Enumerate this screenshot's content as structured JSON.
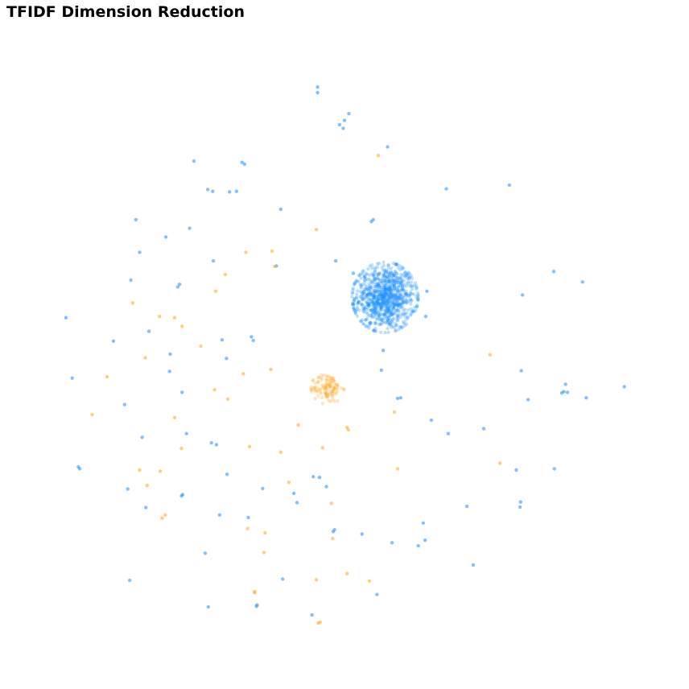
{
  "chart_data": {
    "type": "scatter",
    "title": "TFIDF Dimension Reduction",
    "xlabel": "",
    "ylabel": "",
    "xlim": [
      0,
      100
    ],
    "ylim": [
      0,
      100
    ],
    "grid": false,
    "axes_visible": false,
    "legend": "none",
    "colors": [
      "#1e90ff",
      "#ffa51e"
    ],
    "series": [
      {
        "color": "#1e90ff",
        "points": [
          [
            45.7,
            92.4
          ],
          [
            45.7,
            91.5
          ],
          [
            50.7,
            88.1
          ],
          [
            50.0,
            87.0
          ],
          [
            49.2,
            86.3
          ],
          [
            49.8,
            85.7
          ],
          [
            56.9,
            82.7
          ],
          [
            25.9,
            80.4
          ],
          [
            33.6,
            80.2
          ],
          [
            34.0,
            79.9
          ],
          [
            28.1,
            75.8
          ],
          [
            28.9,
            75.5
          ],
          [
            31.6,
            75.4
          ],
          [
            32.7,
            75.5
          ],
          [
            66.3,
            75.9
          ],
          [
            76.4,
            76.5
          ],
          [
            39.8,
            72.6
          ],
          [
            54.3,
            70.6
          ],
          [
            54.6,
            70.9
          ],
          [
            16.6,
            70.9
          ],
          [
            25.2,
            69.5
          ],
          [
            21.4,
            68.1
          ],
          [
            17.2,
            65.6
          ],
          [
            29.0,
            64.2
          ],
          [
            39.1,
            63.4
          ],
          [
            48.6,
            64.2
          ],
          [
            51.4,
            62.2
          ],
          [
            53.2,
            61.6
          ],
          [
            83.5,
            62.5
          ],
          [
            15.8,
            61.1
          ],
          [
            23.6,
            60.4
          ],
          [
            23.3,
            60.0
          ],
          [
            63.2,
            59.3
          ],
          [
            78.5,
            58.7
          ],
          [
            88.1,
            60.8
          ],
          [
            5.4,
            55.0
          ],
          [
            18.7,
            52.8
          ],
          [
            13.0,
            51.2
          ],
          [
            30.4,
            51.4
          ],
          [
            35.4,
            51.3
          ],
          [
            35.1,
            51.9
          ],
          [
            63.0,
            55.2
          ],
          [
            56.2,
            49.7
          ],
          [
            22.1,
            49.1
          ],
          [
            31.1,
            48.4
          ],
          [
            22.0,
            46.3
          ],
          [
            55.9,
            46.5
          ],
          [
            78.3,
            46.4
          ],
          [
            6.4,
            45.2
          ],
          [
            14.8,
            40.9
          ],
          [
            24.0,
            42.9
          ],
          [
            58.5,
            41.9
          ],
          [
            59.0,
            42.0
          ],
          [
            79.4,
            41.7
          ],
          [
            85.4,
            44.2
          ],
          [
            85.1,
            43.0
          ],
          [
            84.8,
            42.8
          ],
          [
            85.7,
            42.9
          ],
          [
            88.7,
            42.0
          ],
          [
            94.8,
            43.8
          ],
          [
            63.9,
            38.4
          ],
          [
            66.6,
            36.2
          ],
          [
            72.3,
            37.0
          ],
          [
            17.6,
            35.6
          ],
          [
            24.7,
            36.2
          ],
          [
            28.7,
            34.7
          ],
          [
            29.5,
            34.4
          ],
          [
            7.6,
            30.5
          ],
          [
            7.4,
            30.8
          ],
          [
            15.3,
            27.2
          ],
          [
            23.9,
            26.1
          ],
          [
            24.1,
            26.3
          ],
          [
            31.2,
            29.6
          ],
          [
            45.0,
            29.2
          ],
          [
            46.0,
            29.1
          ],
          [
            47.1,
            27.6
          ],
          [
            36.9,
            27.3
          ],
          [
            41.9,
            26.5
          ],
          [
            42.4,
            25.0
          ],
          [
            30.0,
            23.0
          ],
          [
            34.6,
            22.6
          ],
          [
            18.2,
            24.2
          ],
          [
            48.2,
            20.3
          ],
          [
            48.4,
            20.6
          ],
          [
            62.6,
            21.7
          ],
          [
            69.6,
            24.4
          ],
          [
            77.5,
            30.3
          ],
          [
            78.2,
            25.1
          ],
          [
            78.1,
            24.3
          ],
          [
            83.6,
            30.5
          ],
          [
            57.6,
            18.5
          ],
          [
            62.9,
            18.9
          ],
          [
            61.8,
            18.0
          ],
          [
            70.6,
            14.9
          ],
          [
            27.7,
            16.8
          ],
          [
            40.1,
            12.6
          ],
          [
            15.6,
            12.4
          ],
          [
            28.2,
            8.1
          ],
          [
            35.9,
            8.2
          ],
          [
            36.0,
            8.4
          ],
          [
            44.8,
            6.8
          ],
          [
            55.2,
            10.1
          ],
          [
            52.8,
            19.9
          ]
        ]
      },
      {
        "color": "#ffa51e",
        "points": [
          [
            55.4,
            81.3
          ],
          [
            45.5,
            69.3
          ],
          [
            34.2,
            65.6
          ],
          [
            38.4,
            65.8
          ],
          [
            38.8,
            63.3
          ],
          [
            30.9,
            62.0
          ],
          [
            29.4,
            59.3
          ],
          [
            16.1,
            57.4
          ],
          [
            22.8,
            55.0
          ],
          [
            20.4,
            55.2
          ],
          [
            24.0,
            53.6
          ],
          [
            27.0,
            50.4
          ],
          [
            18.1,
            48.5
          ],
          [
            12.0,
            45.4
          ],
          [
            9.6,
            39.3
          ],
          [
            22.8,
            38.8
          ],
          [
            29.2,
            43.3
          ],
          [
            31.3,
            41.8
          ],
          [
            33.8,
            45.9
          ],
          [
            38.2,
            46.6
          ],
          [
            58.0,
            39.7
          ],
          [
            73.3,
            49.0
          ],
          [
            42.6,
            37.6
          ],
          [
            50.4,
            37.2
          ],
          [
            50.6,
            36.8
          ],
          [
            46.5,
            33.9
          ],
          [
            23.9,
            33.8
          ],
          [
            20.5,
            30.1
          ],
          [
            21.3,
            23.0
          ],
          [
            20.8,
            22.5
          ],
          [
            17.2,
            30.3
          ],
          [
            18.4,
            27.8
          ],
          [
            34.8,
            34.1
          ],
          [
            39.8,
            33.2
          ],
          [
            47.9,
            24.9
          ],
          [
            41.1,
            28.3
          ],
          [
            37.3,
            20.1
          ],
          [
            34.5,
            20.8
          ],
          [
            37.1,
            16.9
          ],
          [
            48.1,
            19.2
          ],
          [
            45.5,
            12.5
          ],
          [
            50.4,
            13.5
          ],
          [
            54.0,
            12.3
          ],
          [
            35.6,
            10.4
          ],
          [
            35.6,
            10.6
          ],
          [
            45.8,
            5.5
          ],
          [
            46.1,
            5.6
          ],
          [
            74.9,
            31.4
          ],
          [
            58.5,
            30.5
          ]
        ]
      },
      {
        "cluster": true,
        "color": "#1e90ff",
        "center": [
          56.5,
          58.3
        ],
        "spread": [
          2.4,
          2.6
        ],
        "count": 900
      },
      {
        "cluster": true,
        "color": "#ffa51e",
        "center": [
          47.3,
          43.6
        ],
        "spread": [
          1.2,
          1.2
        ],
        "count": 110
      }
    ]
  }
}
